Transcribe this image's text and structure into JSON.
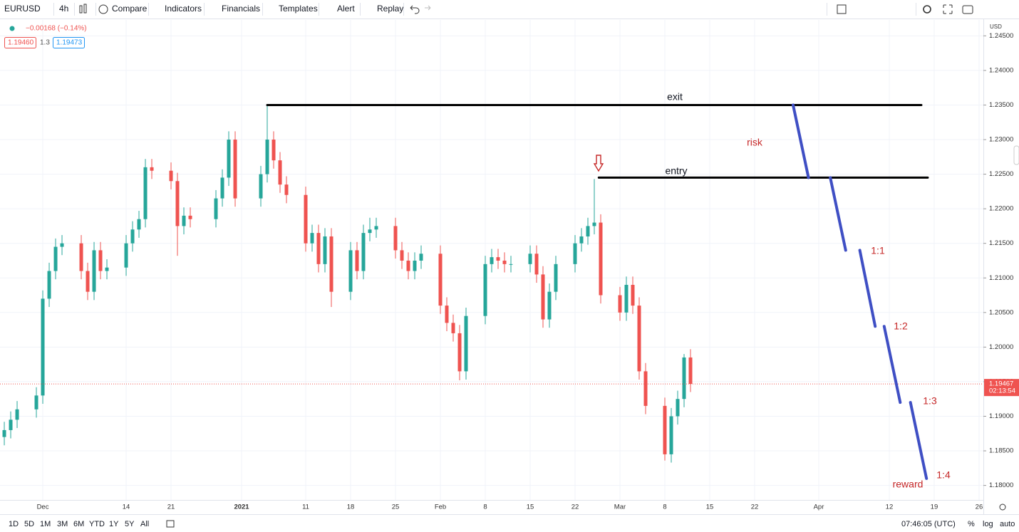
{
  "toolbar": {
    "symbol": "EURUSD",
    "interval": "4h",
    "buttons": [
      "Compare",
      "Indicators",
      "Financials",
      "Templates",
      "Alert",
      "Replay"
    ]
  },
  "legend": {
    "change": "−0.00168 (−0.14%)",
    "bid": "1.19460",
    "spread": "1.3",
    "ask": "1.19473"
  },
  "chart_data": {
    "type": "candlestick",
    "x": [
      -6,
      -5,
      -4,
      -1,
      0,
      1,
      2,
      3,
      6,
      7,
      8,
      9,
      10,
      13,
      14,
      15,
      16,
      17,
      20,
      21,
      22,
      23,
      27,
      28,
      29,
      30,
      34,
      35,
      36,
      37,
      38,
      41,
      42,
      43,
      44,
      45,
      48,
      49,
      50,
      51,
      52,
      55,
      56,
      57,
      58,
      59,
      62,
      63,
      64,
      65,
      66,
      69,
      70,
      71,
      72,
      73,
      76,
      77,
      78,
      79,
      80,
      83,
      84,
      85,
      86,
      87,
      90,
      91,
      92,
      93,
      94,
      97,
      98,
      99,
      100,
      101
    ],
    "open": [
      1.187,
      1.188,
      1.1895,
      1.191,
      1.193,
      1.207,
      1.211,
      1.2145,
      1.215,
      1.211,
      1.208,
      1.214,
      1.211,
      1.2115,
      1.215,
      1.217,
      1.2185,
      1.226,
      1.2255,
      1.224,
      1.2175,
      1.219,
      1.2185,
      1.2215,
      1.2245,
      1.23,
      1.2215,
      1.225,
      1.23,
      1.227,
      1.2235,
      1.222,
      1.215,
      1.2165,
      1.212,
      1.216,
      1.208,
      1.214,
      1.211,
      1.2165,
      1.217,
      1.2175,
      1.214,
      1.2125,
      1.211,
      1.2125,
      1.2135,
      1.206,
      1.2035,
      1.202,
      1.1965,
      1.2045,
      1.212,
      1.213,
      1.2125,
      1.212,
      1.212,
      1.2135,
      1.2105,
      1.204,
      1.208,
      1.212,
      1.215,
      1.216,
      1.2175,
      1.218,
      1.2075,
      1.205,
      1.209,
      1.206,
      1.1965,
      1.1915,
      1.1845,
      1.19,
      1.1925,
      1.1985
    ],
    "high": [
      1.1892,
      1.1907,
      1.1922,
      1.1942,
      1.2082,
      1.2122,
      1.2157,
      1.2162,
      1.2162,
      1.2122,
      1.2152,
      1.2152,
      1.2127,
      1.2162,
      1.2182,
      1.2197,
      1.2272,
      1.2272,
      1.2267,
      1.2252,
      1.2202,
      1.2202,
      1.2227,
      1.2257,
      1.2312,
      1.2312,
      1.2262,
      1.2349,
      1.2312,
      1.2282,
      1.2247,
      1.2232,
      1.2177,
      1.2177,
      1.2172,
      1.2172,
      1.2152,
      1.2152,
      1.2177,
      1.2187,
      1.2187,
      1.2187,
      1.2152,
      1.2137,
      1.2137,
      1.2147,
      1.2147,
      1.2072,
      1.2047,
      1.2032,
      1.2057,
      1.2132,
      1.2142,
      1.2142,
      1.2137,
      1.2132,
      1.2147,
      1.2147,
      1.2117,
      1.2092,
      1.2132,
      1.2162,
      1.2172,
      1.2187,
      1.2243,
      1.2192,
      1.2087,
      1.2102,
      1.2102,
      1.2072,
      1.1977,
      1.1927,
      1.1912,
      1.1937,
      1.199,
      1.1997
    ],
    "low": [
      1.1858,
      1.1868,
      1.1883,
      1.1898,
      1.1918,
      1.2058,
      1.2098,
      1.2133,
      1.2098,
      1.2068,
      1.2068,
      1.2098,
      1.2098,
      1.2103,
      1.2138,
      1.2158,
      1.2173,
      1.2243,
      1.2228,
      1.2132,
      1.2163,
      1.2173,
      1.2173,
      1.2203,
      1.2233,
      1.2203,
      1.2203,
      1.2238,
      1.2258,
      1.2223,
      1.2208,
      1.2138,
      1.2138,
      1.2108,
      1.2108,
      1.2058,
      1.2068,
      1.2098,
      1.2098,
      1.2153,
      1.2158,
      1.2128,
      1.2113,
      1.2098,
      1.2098,
      1.2113,
      1.2048,
      1.2023,
      1.2008,
      1.1952,
      1.1953,
      1.2033,
      1.2108,
      1.2113,
      1.2108,
      1.2108,
      1.2108,
      1.2093,
      1.2028,
      1.2028,
      1.2068,
      1.2108,
      1.2138,
      1.2148,
      1.2163,
      1.2063,
      1.2038,
      1.2038,
      1.2048,
      1.1953,
      1.1903,
      1.1836,
      1.1833,
      1.1888,
      1.1913,
      1.1935
    ],
    "close": [
      1.188,
      1.1895,
      1.191,
      1.193,
      1.207,
      1.211,
      1.2145,
      1.215,
      1.211,
      1.208,
      1.214,
      1.211,
      1.2115,
      1.215,
      1.217,
      1.2185,
      1.226,
      1.2255,
      1.224,
      1.2175,
      1.219,
      1.2185,
      1.2215,
      1.2245,
      1.23,
      1.2215,
      1.225,
      1.23,
      1.227,
      1.2235,
      1.222,
      1.215,
      1.2165,
      1.212,
      1.216,
      1.208,
      1.214,
      1.211,
      1.2165,
      1.217,
      1.2175,
      1.214,
      1.2125,
      1.211,
      1.2125,
      1.2135,
      1.206,
      1.2035,
      1.202,
      1.1965,
      1.2045,
      1.212,
      1.213,
      1.2125,
      1.212,
      1.212,
      1.2135,
      1.2105,
      1.204,
      1.208,
      1.212,
      1.215,
      1.216,
      1.2175,
      1.218,
      1.2075,
      1.205,
      1.209,
      1.206,
      1.1965,
      1.1915,
      1.1845,
      1.19,
      1.1925,
      1.1985,
      1.19467
    ],
    "up_color": "#26a69a",
    "down_color": "#ef5350",
    "xlim": [
      -6.67,
      146.67
    ],
    "ylim": [
      1.1779,
      1.2473
    ],
    "xticks": [
      {
        "value": 0,
        "label": "Dec"
      },
      {
        "value": 13,
        "label": "14"
      },
      {
        "value": 20,
        "label": "21"
      },
      {
        "value": 31,
        "label": "2021"
      },
      {
        "value": 41,
        "label": "11"
      },
      {
        "value": 48,
        "label": "18"
      },
      {
        "value": 55,
        "label": "25"
      },
      {
        "value": 62,
        "label": "Feb"
      },
      {
        "value": 69,
        "label": "8"
      },
      {
        "value": 76,
        "label": "15"
      },
      {
        "value": 83,
        "label": "22"
      },
      {
        "value": 90,
        "label": "Mar"
      },
      {
        "value": 97,
        "label": "8"
      },
      {
        "value": 104,
        "label": "15"
      },
      {
        "value": 111,
        "label": "22"
      },
      {
        "value": 121,
        "label": "Apr"
      },
      {
        "value": 132,
        "label": "12"
      },
      {
        "value": 139,
        "label": "19"
      },
      {
        "value": 146,
        "label": "26"
      }
    ],
    "yticks": [
      {
        "value": 1.18,
        "label": "1.18000"
      },
      {
        "value": 1.185,
        "label": "1.18500"
      },
      {
        "value": 1.19,
        "label": "1.19000"
      },
      {
        "value": 1.195,
        "label": "1.19500"
      },
      {
        "value": 1.2,
        "label": "1.20000"
      },
      {
        "value": 1.205,
        "label": "1.20500"
      },
      {
        "value": 1.21,
        "label": "1.21000"
      },
      {
        "value": 1.215,
        "label": "1.21500"
      },
      {
        "value": 1.22,
        "label": "1.22000"
      },
      {
        "value": 1.225,
        "label": "1.22500"
      },
      {
        "value": 1.23,
        "label": "1.23000"
      },
      {
        "value": 1.235,
        "label": "1.23500"
      },
      {
        "value": 1.24,
        "label": "1.24000"
      },
      {
        "value": 1.245,
        "label": "1.24500"
      }
    ],
    "grid": true,
    "y_unit": "USD",
    "last_price": {
      "value": 1.19467,
      "label": "1.19467"
    },
    "countdown": "02:13:54",
    "lines": [
      {
        "x": [
          35,
          137
        ],
        "y": [
          1.235,
          1.235
        ],
        "color": "#000000"
      },
      {
        "x": [
          86.7,
          138
        ],
        "y": [
          1.2245,
          1.2245
        ],
        "color": "#000000"
      },
      {
        "x": [
          117,
          119.4
        ],
        "y": [
          1.235,
          1.2245
        ],
        "color": "#3f4fc4"
      },
      {
        "x": [
          122.8,
          125.2
        ],
        "y": [
          1.2245,
          1.214
        ],
        "color": "#3f4fc4"
      },
      {
        "x": [
          127.4,
          129.8
        ],
        "y": [
          1.214,
          1.203
        ],
        "color": "#3f4fc4"
      },
      {
        "x": [
          131.2,
          133.7
        ],
        "y": [
          1.203,
          1.192
        ],
        "color": "#3f4fc4"
      },
      {
        "x": [
          135.3,
          137.8
        ],
        "y": [
          1.192,
          1.181
        ],
        "color": "#3f4fc4"
      }
    ],
    "annotations": [
      "exit",
      "risk",
      "entry",
      "1:1",
      "1:2",
      "1:3",
      "1:4",
      "reward"
    ]
  },
  "bottom_bar": {
    "ranges": [
      "1D",
      "5D",
      "1M",
      "3M",
      "6M",
      "YTD",
      "1Y",
      "5Y",
      "All"
    ],
    "time": "07:46:05 (UTC)",
    "options": [
      "%",
      "log",
      "auto"
    ]
  }
}
